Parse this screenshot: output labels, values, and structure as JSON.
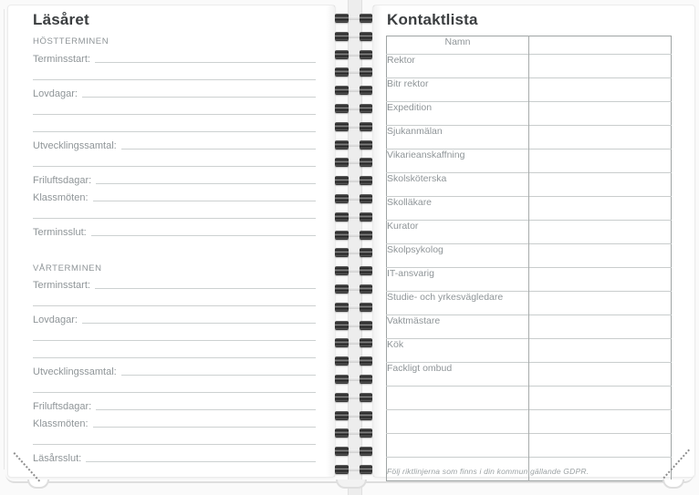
{
  "colors": {
    "ruled_line": "#cdd1d1",
    "table_border": "#9fa4a4",
    "muted_text": "#8f9598",
    "heading_text": "#3b3e40"
  },
  "left_page": {
    "title": "Läsåret",
    "sections": [
      {
        "heading": "HÖSTTERMINEN",
        "rows": [
          "Terminsstart:",
          "",
          "Lovdagar:",
          "",
          "",
          "Utvecklingssamtal:",
          "",
          "Friluftsdagar:",
          "Klassmöten:",
          "",
          "Terminsslut:"
        ]
      },
      {
        "heading": "VÅRTERMINEN",
        "rows": [
          "Terminsstart:",
          "",
          "Lovdagar:",
          "",
          "",
          "Utvecklingssamtal:",
          "",
          "Friluftsdagar:",
          "Klassmöten:",
          "",
          "Läsårsslut:"
        ]
      }
    ]
  },
  "right_page": {
    "title": "Kontaktlista",
    "table": {
      "name_column_header": "Namn",
      "rows": [
        "Rektor",
        "Bitr rektor",
        "Expedition",
        "Sjukanmälan",
        "Vikarieanskaffning",
        "Skolsköterska",
        "Skolläkare",
        "Kurator",
        "Skolpsykolog",
        "IT-ansvarig",
        "Studie- och yrkesvägledare",
        "Vaktmästare",
        "Kök",
        "Fackligt ombud",
        "",
        "",
        "",
        ""
      ]
    },
    "footnote": "Följ riktlinjerna som finns i din kommun gällande GDPR."
  }
}
